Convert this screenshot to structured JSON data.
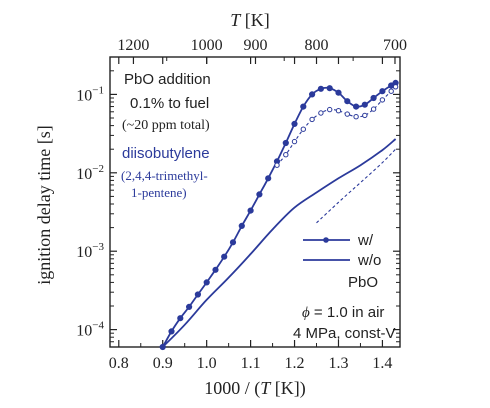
{
  "chart_data": {
    "type": "line",
    "bottom_axis": {
      "label_prefix": "1000 / (",
      "label_var": "T",
      "label_suffix": " [K])",
      "range": [
        0.78,
        1.44
      ],
      "ticks": [
        0.8,
        0.9,
        1.0,
        1.1,
        1.2,
        1.3,
        1.4
      ],
      "tick_labels": [
        "0.8",
        "0.9",
        "1.0",
        "1.1",
        "1.2",
        "1.3",
        "1.4"
      ]
    },
    "top_axis": {
      "label_var": "T",
      "label_unit": " [K]",
      "ticks_K": [
        1200,
        1000,
        900,
        800,
        700
      ],
      "tick_labels": [
        "1200",
        "1000",
        "900",
        "800",
        "700"
      ]
    },
    "left_axis": {
      "label": "ignition delay time [s]",
      "scale": "log",
      "range": [
        6e-05,
        0.3
      ],
      "ticks": [
        0.0001,
        0.001,
        0.01,
        0.1
      ],
      "tick_mantissa": "10",
      "tick_exponents": [
        "−4",
        "−3",
        "−2",
        "−1"
      ]
    },
    "series": [
      {
        "name": "w/",
        "style": "solid-with-filled-circles",
        "color": "#2b3a9b",
        "points": [
          [
            0.9,
            6e-05
          ],
          [
            0.92,
            9.5e-05
          ],
          [
            0.94,
            0.00014
          ],
          [
            0.96,
            0.000195
          ],
          [
            0.98,
            0.00028
          ],
          [
            1.0,
            0.0004
          ],
          [
            1.02,
            0.00058
          ],
          [
            1.04,
            0.00085
          ],
          [
            1.06,
            0.0013
          ],
          [
            1.08,
            0.0021
          ],
          [
            1.1,
            0.0033
          ],
          [
            1.12,
            0.0053
          ],
          [
            1.14,
            0.0085
          ],
          [
            1.16,
            0.014
          ],
          [
            1.18,
            0.024
          ],
          [
            1.2,
            0.042
          ],
          [
            1.22,
            0.07
          ],
          [
            1.24,
            0.1
          ],
          [
            1.26,
            0.118
          ],
          [
            1.28,
            0.12
          ],
          [
            1.3,
            0.105
          ],
          [
            1.32,
            0.082
          ],
          [
            1.34,
            0.07
          ],
          [
            1.36,
            0.074
          ],
          [
            1.38,
            0.09
          ],
          [
            1.4,
            0.11
          ],
          [
            1.42,
            0.13
          ],
          [
            1.43,
            0.14
          ]
        ]
      },
      {
        "name": "w/o",
        "style": "solid",
        "color": "#2b3a9b",
        "points": [
          [
            0.9,
            6e-05
          ],
          [
            0.95,
            0.000115
          ],
          [
            1.0,
            0.00024
          ],
          [
            1.05,
            0.00046
          ],
          [
            1.1,
            0.00092
          ],
          [
            1.15,
            0.0019
          ],
          [
            1.2,
            0.0036
          ],
          [
            1.25,
            0.0056
          ],
          [
            1.3,
            0.0085
          ],
          [
            1.35,
            0.0125
          ],
          [
            1.4,
            0.0195
          ],
          [
            1.43,
            0.027
          ]
        ]
      },
      {
        "name": "w/ (dashed, open circles)",
        "style": "dashed-with-open-circles",
        "color": "#2b3a9b",
        "points": [
          [
            1.16,
            0.0125
          ],
          [
            1.18,
            0.017
          ],
          [
            1.2,
            0.025
          ],
          [
            1.22,
            0.036
          ],
          [
            1.24,
            0.048
          ],
          [
            1.26,
            0.058
          ],
          [
            1.28,
            0.064
          ],
          [
            1.3,
            0.062
          ],
          [
            1.32,
            0.056
          ],
          [
            1.34,
            0.052
          ],
          [
            1.36,
            0.054
          ],
          [
            1.38,
            0.065
          ],
          [
            1.4,
            0.085
          ],
          [
            1.42,
            0.11
          ],
          [
            1.43,
            0.125
          ]
        ]
      },
      {
        "name": "w/o (dashed)",
        "style": "dashed",
        "color": "#2b3a9b",
        "points": [
          [
            1.25,
            0.0023
          ],
          [
            1.3,
            0.0042
          ],
          [
            1.35,
            0.0075
          ],
          [
            1.4,
            0.0135
          ],
          [
            1.43,
            0.02
          ]
        ]
      }
    ],
    "legend": {
      "placement": "bottom-right",
      "entries": [
        "w/",
        "w/o"
      ],
      "group_label": "PbO"
    },
    "annotations": {
      "pbo_line1": "PbO addition",
      "pbo_line2": "0.1% to fuel",
      "pbo_line3": "(~20 ppm total)",
      "fuel_name": "diisobutylene",
      "fuel_sub1": "(2,4,4-trimethyl-",
      "fuel_sub2": "1-pentene)",
      "cond_phi": "ϕ",
      "cond_line1": " = 1.0 in air",
      "cond_line2": "4 MPa, const-V"
    },
    "colors": {
      "series": "#2b3a9b",
      "axes": "#222222"
    }
  }
}
